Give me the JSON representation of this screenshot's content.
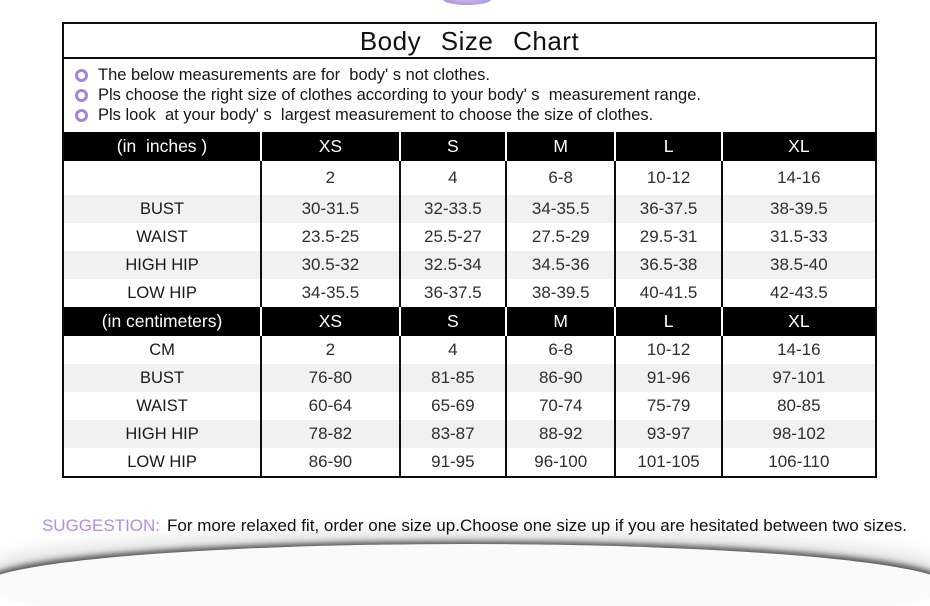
{
  "page": {
    "title": "Body Size Chart",
    "notes": [
      "The below measurements are for  body' s not clothes.",
      "Pls choose the right size of clothes according to your body' s  measurement range.",
      "Pls look  at your body' s  largest measurement to choose the size of clothes."
    ],
    "suggestion_label": "SUGGESTION:",
    "suggestion_text": "For more relaxed fit, order one size up.Choose one size up if you are hesitated between two sizes."
  },
  "colors": {
    "accent_purple": "#a585d8",
    "suggestion_purple": "#b48ce4",
    "header_bg": "#000000",
    "header_text": "#ffffff",
    "alt_row_bg": "#f1f1f1",
    "border_black": "#0d0d0d"
  },
  "chart_data": [
    {
      "type": "table",
      "unit_label": "(in  inches )",
      "columns": [
        "XS",
        "S",
        "M",
        "L",
        "XL"
      ],
      "rows": [
        [
          "",
          "2",
          "4",
          "6-8",
          "10-12",
          "14-16"
        ],
        [
          "BUST",
          "30-31.5",
          "32-33.5",
          "34-35.5",
          "36-37.5",
          "38-39.5"
        ],
        [
          "WAIST",
          "23.5-25",
          "25.5-27",
          "27.5-29",
          "29.5-31",
          "31.5-33"
        ],
        [
          "HIGH HIP",
          "30.5-32",
          "32.5-34",
          "34.5-36",
          "36.5-38",
          "38.5-40"
        ],
        [
          "LOW HIP",
          "34-35.5",
          "36-37.5",
          "38-39.5",
          "40-41.5",
          "42-43.5"
        ]
      ]
    },
    {
      "type": "table",
      "unit_label": "(in centimeters)",
      "columns": [
        "XS",
        "S",
        "M",
        "L",
        "XL"
      ],
      "rows": [
        [
          "CM",
          "2",
          "4",
          "6-8",
          "10-12",
          "14-16"
        ],
        [
          "BUST",
          "76-80",
          "81-85",
          "86-90",
          "91-96",
          "97-101"
        ],
        [
          "WAIST",
          "60-64",
          "65-69",
          "70-74",
          "75-79",
          "80-85"
        ],
        [
          "HIGH HIP",
          "78-82",
          "83-87",
          "88-92",
          "93-97",
          "98-102"
        ],
        [
          "LOW HIP",
          "86-90",
          "91-95",
          "96-100",
          "101-105",
          "106-110"
        ]
      ]
    }
  ]
}
